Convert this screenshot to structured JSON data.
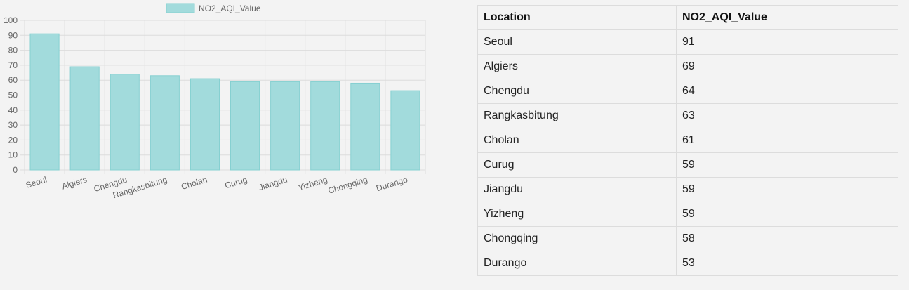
{
  "chart_data": {
    "type": "bar",
    "categories": [
      "Seoul",
      "Algiers",
      "Chengdu",
      "Rangkasbitung",
      "Cholan",
      "Curug",
      "Jiangdu",
      "Yizheng",
      "Chongqing",
      "Durango"
    ],
    "series": [
      {
        "name": "NO2_AQI_Value",
        "values": [
          91,
          69,
          64,
          63,
          61,
          59,
          59,
          59,
          58,
          53
        ],
        "color": "#a2dbdc",
        "border_color": "#86d0d1"
      }
    ],
    "ylim": [
      0,
      100
    ],
    "yticks": [
      0,
      10,
      20,
      30,
      40,
      50,
      60,
      70,
      80,
      90,
      100
    ],
    "grid": true,
    "legend_position": "top"
  },
  "table": {
    "headers": [
      "Location",
      "NO2_AQI_Value"
    ],
    "rows": [
      [
        "Seoul",
        "91"
      ],
      [
        "Algiers",
        "69"
      ],
      [
        "Chengdu",
        "64"
      ],
      [
        "Rangkasbitung",
        "63"
      ],
      [
        "Cholan",
        "61"
      ],
      [
        "Curug",
        "59"
      ],
      [
        "Jiangdu",
        "59"
      ],
      [
        "Yizheng",
        "59"
      ],
      [
        "Chongqing",
        "58"
      ],
      [
        "Durango",
        "53"
      ]
    ]
  }
}
